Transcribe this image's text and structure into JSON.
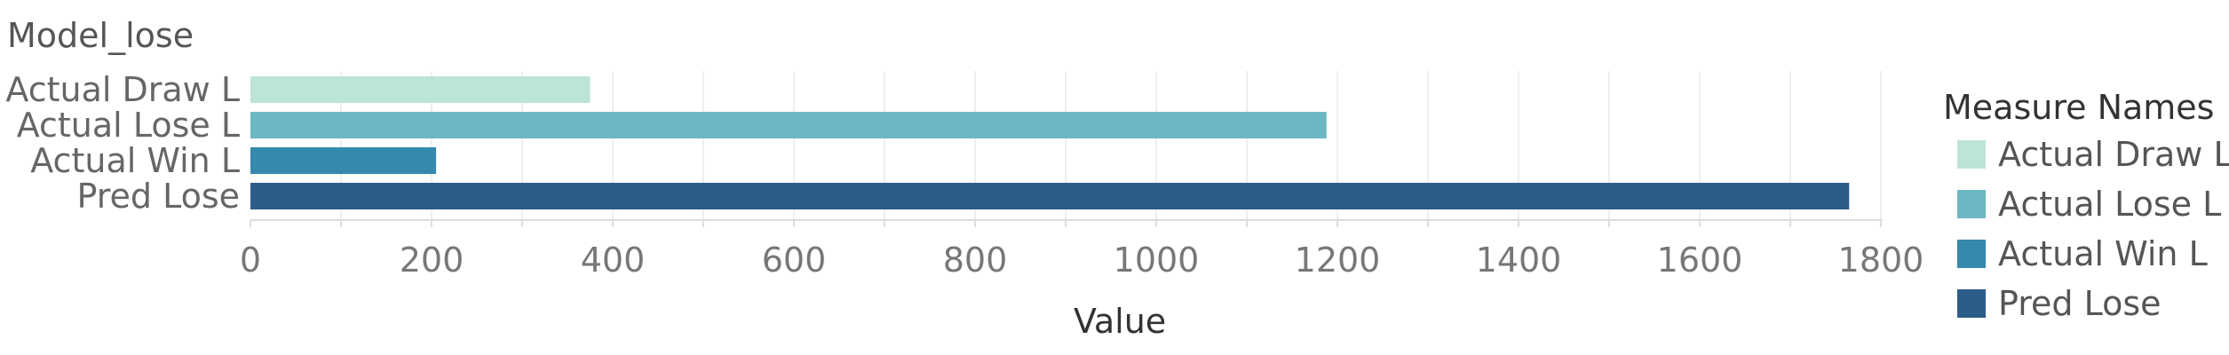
{
  "chart_data": {
    "type": "bar",
    "orientation": "horizontal",
    "title": "Model_lose",
    "categories": [
      "Actual Draw L",
      "Actual Lose L",
      "Actual Win L",
      "Pred Lose"
    ],
    "values": [
      375,
      1188,
      205,
      1765
    ],
    "colors": [
      "#bde4d8",
      "#6db6c4",
      "#3489ad",
      "#2c5c88"
    ],
    "xlabel": "Value",
    "ylabel": "",
    "xlim": [
      0,
      1800
    ],
    "xticks": [
      "0",
      "200",
      "400",
      "600",
      "800",
      "1000",
      "1200",
      "1400",
      "1600",
      "1800"
    ],
    "grid": true,
    "legend": {
      "title": "Measure Names",
      "position": "right",
      "items": [
        "Actual Draw L",
        "Actual Lose L",
        "Actual Win L",
        "Pred Lose"
      ]
    }
  }
}
